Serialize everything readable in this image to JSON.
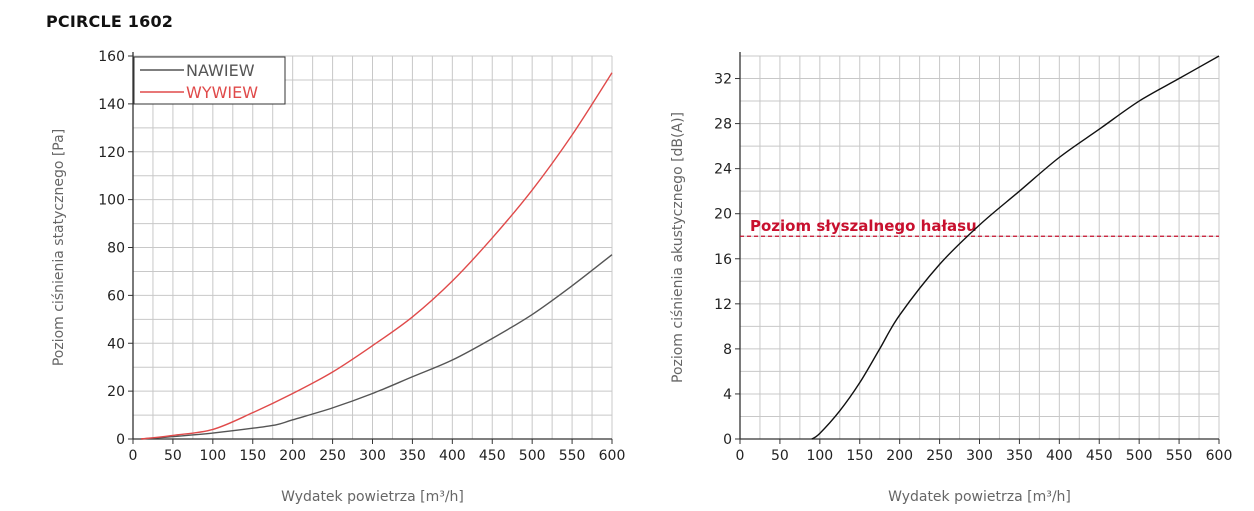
{
  "title": "PCIRCLE 1602",
  "colors": {
    "nawiew": "#555555",
    "wywiew": "#e04a4a",
    "threshold": "#c8102e",
    "grid": "#c8c8c8",
    "axis": "#333333"
  },
  "chart_data": [
    {
      "type": "line",
      "xlabel": "Wydatek powietrza [m³/h]",
      "ylabel": "Poziom ciśnienia statycznego [Pa]",
      "xlim": [
        0,
        600
      ],
      "ylim": [
        0,
        160
      ],
      "xticks": [
        0,
        50,
        100,
        150,
        200,
        250,
        300,
        350,
        400,
        450,
        500,
        550,
        600
      ],
      "yticks": [
        0,
        20,
        40,
        60,
        80,
        100,
        120,
        140,
        160
      ],
      "grid": true,
      "legend_position": "top-left",
      "series": [
        {
          "name": "NAWIEW",
          "color": "#555555",
          "x": [
            10,
            50,
            100,
            150,
            180,
            200,
            250,
            300,
            350,
            400,
            450,
            500,
            550,
            600
          ],
          "y": [
            0,
            1,
            2.5,
            4.5,
            6,
            8,
            13,
            19,
            26,
            33,
            42,
            52,
            64,
            77
          ]
        },
        {
          "name": "WYWIEW",
          "color": "#e04a4a",
          "x": [
            10,
            50,
            100,
            150,
            200,
            250,
            300,
            350,
            400,
            450,
            500,
            550,
            600
          ],
          "y": [
            0,
            1.5,
            4,
            11,
            19,
            28,
            39,
            51,
            66,
            84,
            104,
            127,
            153
          ]
        }
      ]
    },
    {
      "type": "line",
      "xlabel": "Wydatek powietrza [m³/h]",
      "ylabel": "Poziom ciśnienia akustycznego [dB(A)]",
      "xlim": [
        0,
        600
      ],
      "ylim": [
        0,
        34
      ],
      "xticks": [
        0,
        50,
        100,
        150,
        200,
        250,
        300,
        350,
        400,
        450,
        500,
        550,
        600
      ],
      "yticks": [
        0,
        4,
        8,
        12,
        16,
        20,
        24,
        28,
        32
      ],
      "grid": true,
      "threshold": {
        "y": 18,
        "label": "Poziom słyszalnego hałasu",
        "color": "#c8102e"
      },
      "series": [
        {
          "color": "#111111",
          "x": [
            90,
            100,
            125,
            150,
            175,
            200,
            250,
            300,
            350,
            400,
            450,
            500,
            550,
            600
          ],
          "y": [
            0,
            0.5,
            2.5,
            5,
            8,
            11,
            15.5,
            19,
            22,
            25,
            27.5,
            30,
            32,
            34
          ]
        }
      ]
    }
  ]
}
